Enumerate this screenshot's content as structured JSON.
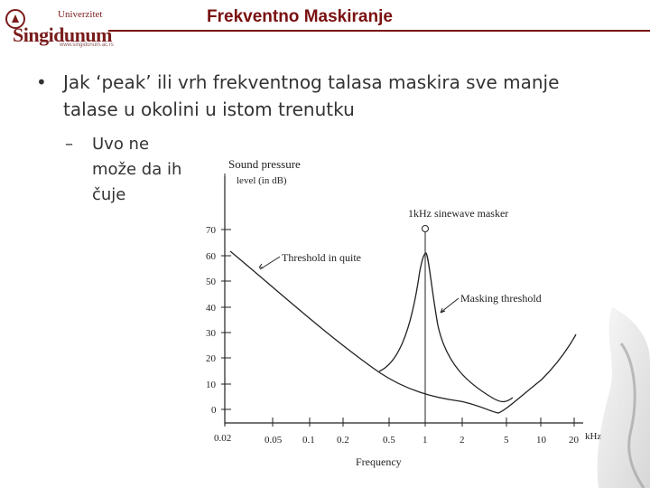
{
  "header": {
    "title": "Frekventno Maskiranje",
    "logo_text_top": "Univerzitet",
    "logo_text_main": "Singidunum",
    "logo_url": "www.singidunum.ac.rs"
  },
  "bullet": {
    "marker": "•",
    "text": "Jak ‘peak’ ili vrh frekventnog talasa maskira sve manje talase u okolini u istom trenutku"
  },
  "sub_bullet": {
    "marker": "–",
    "text": "Uvo ne može da ih čuje"
  },
  "diagram": {
    "ylabel_line1": "Sound pressure",
    "ylabel_line2": "level (in dB)",
    "xlabel": "Frequency",
    "x_unit": "kHz",
    "y_ticks": [
      "70",
      "60",
      "50",
      "40",
      "30",
      "20",
      "10",
      "0"
    ],
    "x_ticks": [
      "0.02",
      "0.05",
      "0.1",
      "0.2",
      "0.5",
      "1",
      "2",
      "5",
      "10",
      "20"
    ],
    "label_masker": "1kHz sinewave masker",
    "label_threshold_quiet": "Threshold in quite",
    "label_masking_threshold": "Masking threshold"
  }
}
